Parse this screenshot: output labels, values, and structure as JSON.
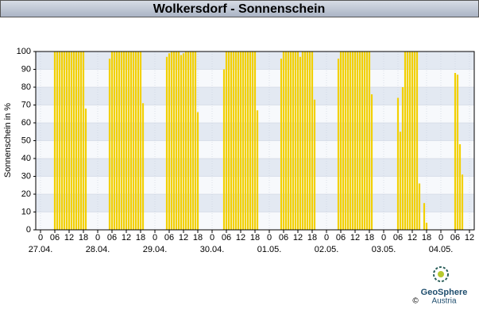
{
  "chart_data": {
    "type": "bar",
    "title": "Wolkersdorf - Sonnenschein",
    "y_label": "Sonnenschein in %",
    "color": "#f2d000",
    "x": [
      6,
      7,
      8,
      9,
      10,
      11,
      12,
      13,
      14,
      15,
      16,
      17,
      18,
      19,
      29,
      30,
      31,
      32,
      33,
      34,
      35,
      36,
      37,
      38,
      39,
      40,
      41,
      42,
      43,
      53,
      54,
      55,
      56,
      57,
      58,
      59,
      60,
      61,
      62,
      63,
      64,
      65,
      66,
      77,
      78,
      79,
      80,
      81,
      82,
      83,
      84,
      85,
      86,
      87,
      88,
      89,
      90,
      91,
      101,
      102,
      103,
      104,
      105,
      106,
      107,
      108,
      109,
      110,
      111,
      112,
      113,
      114,
      115,
      125,
      126,
      127,
      128,
      129,
      130,
      131,
      132,
      133,
      134,
      135,
      136,
      137,
      138,
      139,
      150,
      151,
      152,
      153,
      154,
      155,
      156,
      157,
      158,
      159,
      161,
      162,
      174,
      175,
      176,
      177
    ],
    "values": [
      100,
      100,
      100,
      100,
      100,
      100,
      100,
      100,
      100,
      100,
      100,
      100,
      100,
      68,
      96,
      100,
      100,
      100,
      100,
      100,
      100,
      100,
      100,
      100,
      100,
      100,
      100,
      100,
      71,
      97,
      99,
      100,
      100,
      100,
      100,
      98,
      99,
      100,
      100,
      100,
      100,
      100,
      66,
      90,
      100,
      100,
      100,
      100,
      100,
      100,
      100,
      100,
      100,
      100,
      100,
      100,
      100,
      67,
      96,
      100,
      100,
      100,
      100,
      100,
      100,
      100,
      97,
      100,
      100,
      100,
      100,
      100,
      73,
      96,
      100,
      100,
      100,
      100,
      100,
      100,
      100,
      100,
      100,
      100,
      100,
      100,
      100,
      76,
      74,
      55,
      80,
      100,
      100,
      100,
      100,
      100,
      100,
      26,
      15,
      4,
      88,
      87,
      48,
      31
    ],
    "xlim": [
      -2,
      182
    ],
    "ylim": [
      0,
      100
    ],
    "yticks": [
      0,
      10,
      20,
      30,
      40,
      50,
      60,
      70,
      80,
      90,
      100
    ],
    "xticks": [
      {
        "value": 0,
        "label": "0"
      },
      {
        "value": 6,
        "label": "06"
      },
      {
        "value": 12,
        "label": "12"
      },
      {
        "value": 18,
        "label": "18"
      },
      {
        "value": 24,
        "label": "0"
      },
      {
        "value": 30,
        "label": "06"
      },
      {
        "value": 36,
        "label": "12"
      },
      {
        "value": 42,
        "label": "18"
      },
      {
        "value": 48,
        "label": "0"
      },
      {
        "value": 54,
        "label": "06"
      },
      {
        "value": 60,
        "label": "12"
      },
      {
        "value": 66,
        "label": "18"
      },
      {
        "value": 72,
        "label": "0"
      },
      {
        "value": 78,
        "label": "06"
      },
      {
        "value": 84,
        "label": "12"
      },
      {
        "value": 90,
        "label": "18"
      },
      {
        "value": 96,
        "label": "0"
      },
      {
        "value": 102,
        "label": "06"
      },
      {
        "value": 108,
        "label": "12"
      },
      {
        "value": 114,
        "label": "18"
      },
      {
        "value": 120,
        "label": "0"
      },
      {
        "value": 126,
        "label": "06"
      },
      {
        "value": 132,
        "label": "12"
      },
      {
        "value": 138,
        "label": "18"
      },
      {
        "value": 144,
        "label": "0"
      },
      {
        "value": 150,
        "label": "06"
      },
      {
        "value": 156,
        "label": "12"
      },
      {
        "value": 162,
        "label": "18"
      },
      {
        "value": 168,
        "label": "0"
      },
      {
        "value": 174,
        "label": "06"
      },
      {
        "value": 180,
        "label": "12"
      }
    ],
    "date_labels": [
      {
        "value": 0,
        "label": "27.04."
      },
      {
        "value": 24,
        "label": "28.04."
      },
      {
        "value": 48,
        "label": "29.04."
      },
      {
        "value": 72,
        "label": "30.04."
      },
      {
        "value": 96,
        "label": "01.05."
      },
      {
        "value": 120,
        "label": "02.05."
      },
      {
        "value": 144,
        "label": "03.05."
      },
      {
        "value": 168,
        "label": "04.05."
      }
    ],
    "grid": true
  },
  "footer": {
    "logo_top": "GeoSphere",
    "logo_bottom": "Austria",
    "copyright": "©"
  }
}
